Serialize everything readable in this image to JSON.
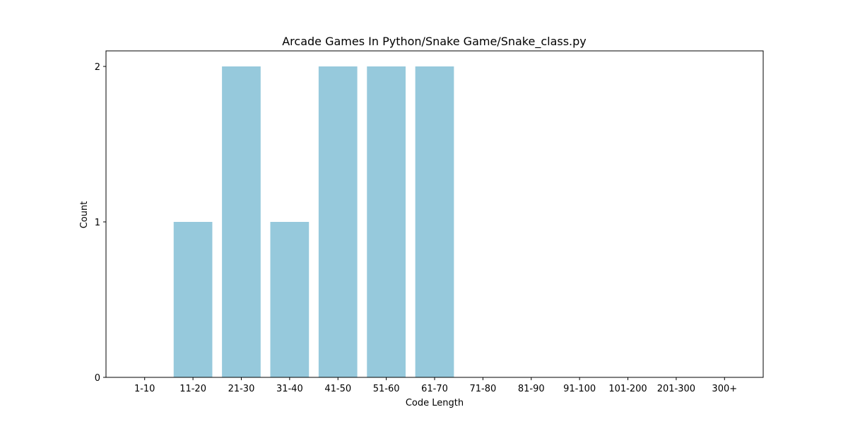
{
  "chart_data": {
    "type": "bar",
    "title": "Arcade Games In Python/Snake Game/Snake_class.py",
    "xlabel": "Code Length",
    "ylabel": "Count",
    "categories": [
      "1-10",
      "11-20",
      "21-30",
      "31-40",
      "41-50",
      "51-60",
      "61-70",
      "71-80",
      "81-90",
      "91-100",
      "101-200",
      "201-300",
      "300+"
    ],
    "values": [
      0,
      1,
      2,
      1,
      2,
      2,
      2,
      0,
      0,
      0,
      0,
      0,
      0
    ],
    "yticks": [
      0,
      1,
      2
    ],
    "ylim": [
      0,
      2.1
    ],
    "bar_color": "#96c9dc",
    "grid": false,
    "legend": "none"
  }
}
